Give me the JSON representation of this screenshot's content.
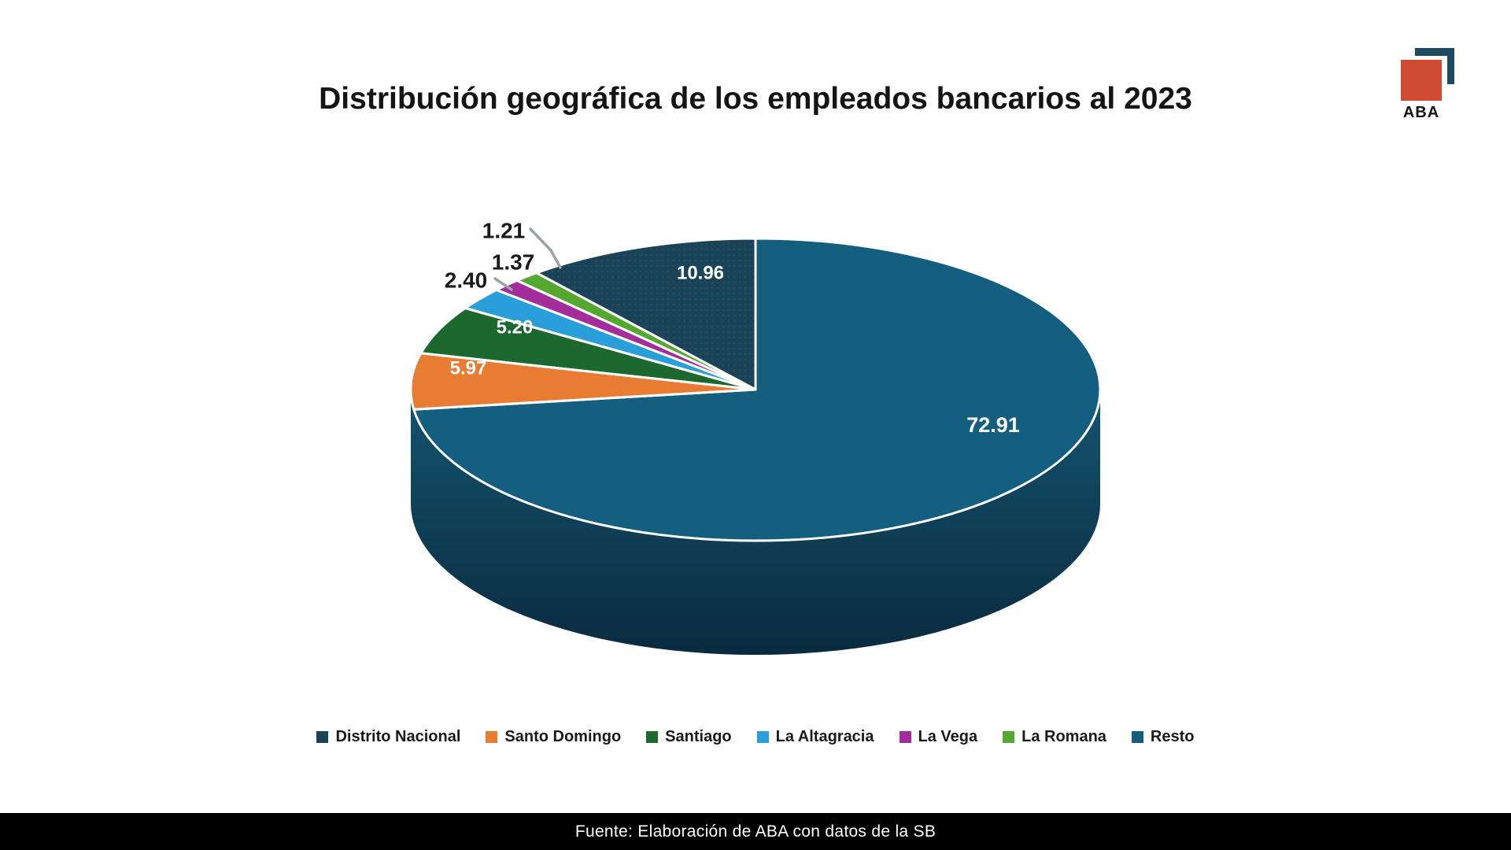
{
  "title": {
    "text": "Distribución geográfica de los empleados bancarios al 2023"
  },
  "logo": {
    "text": "ABA",
    "square_color": "#d04a31",
    "bracket_color": "#1c4a61"
  },
  "footer": {
    "text": "Fuente: Elaboración de ABA con datos de la SB",
    "bar_color": "#000000",
    "text_color": "#ffffff"
  },
  "chart_data": {
    "type": "pie",
    "style": "3d",
    "title": "Distribución geográfica de los empleados bancarios al 2023",
    "unit": "percent",
    "categories": [
      "Distrito Nacional",
      "Santo Domingo",
      "Santiago",
      "La Altagracia",
      "La Vega",
      "La Romana",
      "Resto"
    ],
    "values": [
      10.96,
      5.97,
      5.2,
      2.4,
      1.37,
      1.21,
      72.91
    ],
    "labels": [
      "10.96",
      "5.97",
      "5.20",
      "2.40",
      "1.37",
      "1.21",
      "72.91"
    ],
    "colors": [
      "#1b4357",
      "#e87c33",
      "#1d682e",
      "#2a9ed8",
      "#a32d9b",
      "#55a82f",
      "#145e7f"
    ],
    "slice_order_clockwise_from_top": [
      "Resto",
      "Santo Domingo",
      "Santiago",
      "La Altagracia",
      "La Vega",
      "La Romana",
      "Distrito Nacional"
    ],
    "legend_position": "bottom",
    "legend": [
      "Distrito Nacional",
      "Santo Domingo",
      "Santiago",
      "La Altagracia",
      "La Vega",
      "La Romana",
      "Resto"
    ],
    "label_text_color_inside": "#ffffff",
    "label_text_color_outside": "#1a1a1a",
    "leader_line_color": "#9aa3a6",
    "side_gradient": [
      "#14536f",
      "#0a2b3f"
    ]
  }
}
